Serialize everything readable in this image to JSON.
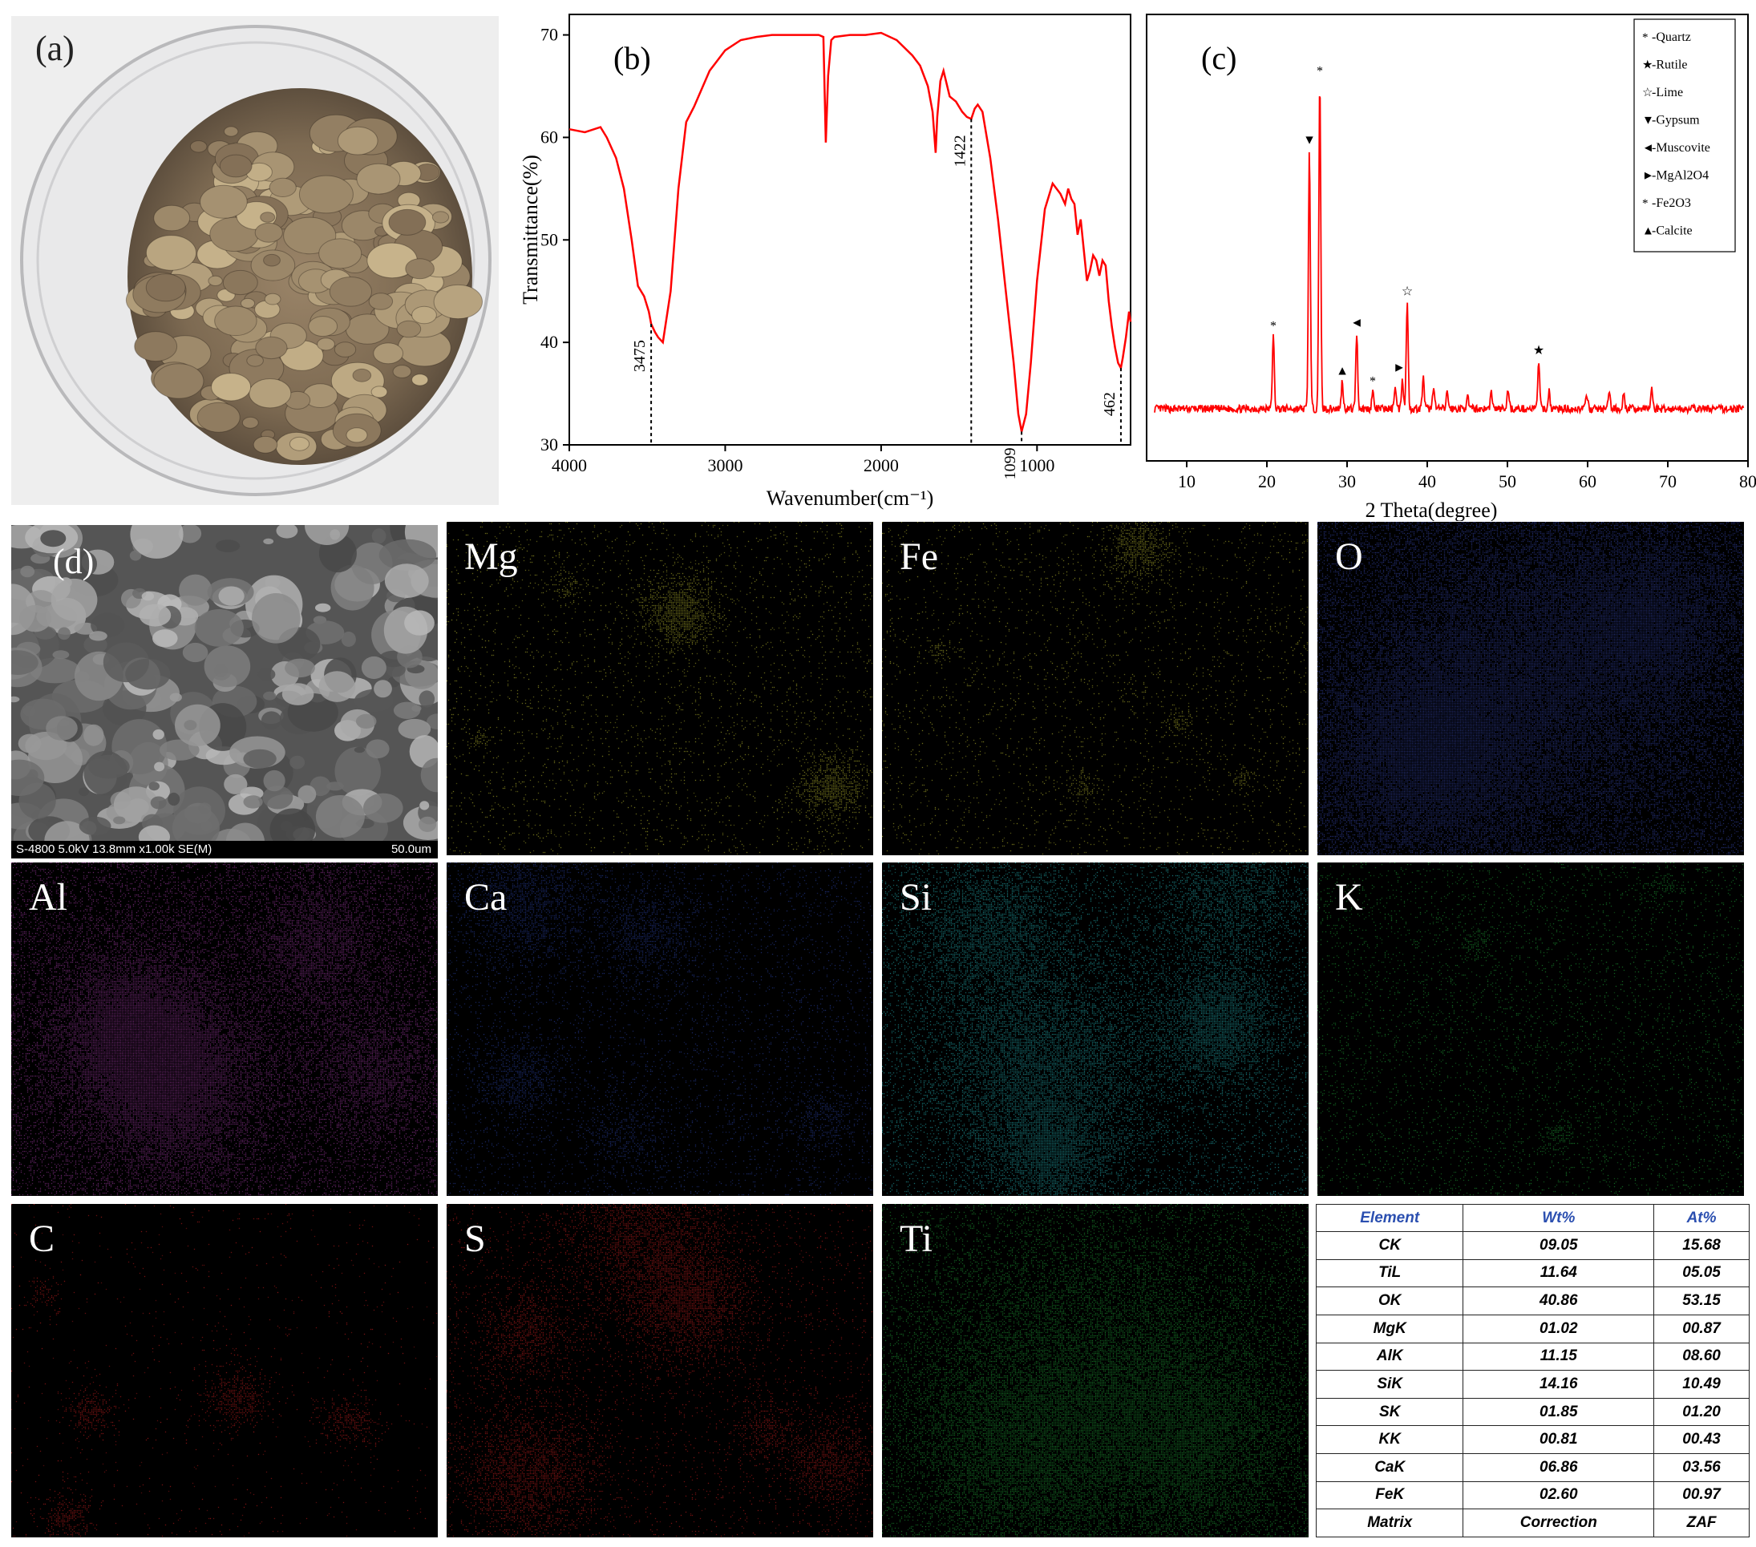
{
  "panels": {
    "a": {
      "label": "(a)"
    },
    "b": {
      "label": "(b)"
    },
    "c": {
      "label": "(c)"
    },
    "d": {
      "label": "(d)",
      "sem_info": "S-4800 5.0kV 13.8mm x1.00k SE(M)",
      "scale_bar": "50.0um"
    }
  },
  "maps": [
    {
      "element": "Mg",
      "color": "#c8c832"
    },
    {
      "element": "Fe",
      "color": "#c8c832"
    },
    {
      "element": "O",
      "color": "#3c4ec0"
    },
    {
      "element": "Al",
      "color": "#b040b4"
    },
    {
      "element": "Ca",
      "color": "#2e48b4"
    },
    {
      "element": "Si",
      "color": "#28c4c8"
    },
    {
      "element": "K",
      "color": "#22b03c"
    },
    {
      "element": "C",
      "color": "#d82222"
    },
    {
      "element": "S",
      "color": "#d82222"
    },
    {
      "element": "Ti",
      "color": "#22b03c"
    }
  ],
  "eds_table": {
    "headers": [
      "Element",
      "Wt%",
      "At%"
    ],
    "rows": [
      [
        "CK",
        "09.05",
        "15.68"
      ],
      [
        "TiL",
        "11.64",
        "05.05"
      ],
      [
        "OK",
        "40.86",
        "53.15"
      ],
      [
        "MgK",
        "01.02",
        "00.87"
      ],
      [
        "AlK",
        "11.15",
        "08.60"
      ],
      [
        "SiK",
        "14.16",
        "10.49"
      ],
      [
        "SK",
        "01.85",
        "01.20"
      ],
      [
        "KK",
        "00.81",
        "00.43"
      ],
      [
        "CaK",
        "06.86",
        "03.56"
      ],
      [
        "FeK",
        "02.60",
        "00.97"
      ],
      [
        "Matrix",
        "Correction",
        "ZAF"
      ]
    ]
  },
  "chart_data": [
    {
      "type": "line",
      "panel": "b",
      "xlabel": "Wavenumber(cm⁻¹)",
      "ylabel": "Transmittance(%)",
      "xlim": [
        4000,
        400
      ],
      "ylim": [
        30,
        72
      ],
      "x_ticks": [
        4000,
        3000,
        2000,
        1000
      ],
      "y_ticks": [
        30,
        40,
        50,
        60,
        70
      ],
      "color": "#ff0000",
      "series": [
        {
          "x": [
            4000,
            3900,
            3800,
            3760,
            3700,
            3650,
            3600,
            3560,
            3520,
            3490,
            3475,
            3450,
            3430,
            3400,
            3350,
            3300,
            3250,
            3200,
            3100,
            3000,
            2900,
            2800,
            2700,
            2500,
            2400,
            2370,
            2355,
            2340,
            2320,
            2300,
            2200,
            2100,
            2000,
            1900,
            1800,
            1750,
            1700,
            1670,
            1650,
            1640,
            1620,
            1600,
            1560,
            1520,
            1480,
            1450,
            1422,
            1400,
            1380,
            1350,
            1300,
            1250,
            1200,
            1150,
            1120,
            1099,
            1070,
            1040,
            1000,
            950,
            900,
            850,
            820,
            800,
            780,
            760,
            740,
            720,
            700,
            680,
            660,
            640,
            620,
            600,
            580,
            560,
            540,
            520,
            500,
            480,
            462,
            450,
            430,
            410,
            400
          ],
          "y": [
            60.8,
            60.5,
            61.0,
            60.0,
            58.0,
            55.0,
            50.0,
            45.5,
            44.5,
            43.0,
            41.8,
            41.0,
            40.5,
            40.0,
            45.0,
            55.0,
            61.5,
            63.0,
            66.5,
            68.5,
            69.5,
            69.8,
            70.0,
            70.0,
            70.0,
            69.8,
            59.5,
            66.0,
            69.5,
            69.8,
            70.0,
            70.0,
            70.2,
            69.5,
            68.0,
            67.0,
            65.0,
            62.5,
            58.5,
            62.0,
            65.5,
            66.5,
            64.0,
            63.5,
            62.5,
            62.0,
            61.8,
            62.8,
            63.2,
            62.5,
            58.0,
            52.0,
            45.0,
            38.0,
            33.0,
            31.3,
            33.0,
            38.0,
            46.0,
            53.0,
            55.5,
            54.5,
            53.5,
            55.0,
            54.0,
            53.5,
            50.5,
            52.0,
            49.0,
            46.0,
            47.0,
            48.5,
            48.0,
            46.5,
            48.0,
            47.5,
            44.0,
            41.5,
            39.5,
            38.0,
            37.5,
            38.5,
            40.5,
            43.0,
            42.0
          ]
        }
      ],
      "annotations": [
        {
          "x": 3475,
          "label": "3475"
        },
        {
          "x": 1422,
          "label": "1422"
        },
        {
          "x": 1099,
          "label": "1099"
        },
        {
          "x": 462,
          "label": "462"
        }
      ]
    },
    {
      "type": "line",
      "panel": "c",
      "xlabel": "2 Theta(degree)",
      "xlim": [
        5,
        80
      ],
      "x_ticks": [
        10,
        20,
        30,
        40,
        50,
        60,
        70,
        80
      ],
      "ylim": [
        0,
        100
      ],
      "color": "#ff0000",
      "peaks": [
        {
          "x": 20.8,
          "h": 21
        },
        {
          "x": 25.3,
          "h": 75
        },
        {
          "x": 26.6,
          "h": 95
        },
        {
          "x": 29.4,
          "h": 8
        },
        {
          "x": 31.2,
          "h": 22
        },
        {
          "x": 33.2,
          "h": 5
        },
        {
          "x": 36.0,
          "h": 7
        },
        {
          "x": 36.9,
          "h": 9
        },
        {
          "x": 37.5,
          "h": 31
        },
        {
          "x": 39.5,
          "h": 9
        },
        {
          "x": 40.8,
          "h": 7
        },
        {
          "x": 42.5,
          "h": 5
        },
        {
          "x": 45.0,
          "h": 4
        },
        {
          "x": 48.0,
          "h": 5
        },
        {
          "x": 50.1,
          "h": 6
        },
        {
          "x": 53.9,
          "h": 14
        },
        {
          "x": 55.2,
          "h": 5
        },
        {
          "x": 59.9,
          "h": 4
        },
        {
          "x": 62.7,
          "h": 5
        },
        {
          "x": 64.5,
          "h": 4
        },
        {
          "x": 68.0,
          "h": 6
        }
      ],
      "markers": [
        {
          "x": 20.8,
          "symbol": "*"
        },
        {
          "x": 25.3,
          "symbol": "▼"
        },
        {
          "x": 26.6,
          "symbol": "*"
        },
        {
          "x": 29.4,
          "symbol": "▲"
        },
        {
          "x": 31.2,
          "symbol": "◄"
        },
        {
          "x": 33.2,
          "symbol": "*"
        },
        {
          "x": 36.5,
          "symbol": "►"
        },
        {
          "x": 37.5,
          "symbol": "☆"
        },
        {
          "x": 53.9,
          "symbol": "★"
        }
      ],
      "legend": [
        {
          "symbol": "*",
          "label": "-Quartz"
        },
        {
          "symbol": "★",
          "label": "-Rutile"
        },
        {
          "symbol": "☆",
          "label": "-Lime"
        },
        {
          "symbol": "▼",
          "label": "-Gypsum"
        },
        {
          "symbol": "◄",
          "label": "-Muscovite"
        },
        {
          "symbol": "►",
          "label": "-MgAl2O4"
        },
        {
          "symbol": "*",
          "label": "-Fe2O3"
        },
        {
          "symbol": "▲",
          "label": "-Calcite"
        }
      ],
      "legend_position": "top-right"
    }
  ]
}
